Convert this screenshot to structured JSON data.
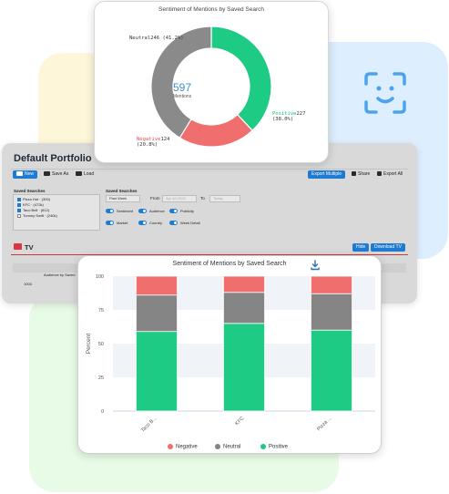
{
  "donut": {
    "title": "Sentiment of Mentions by Saved Search",
    "center_value": "597",
    "center_label": "Mentions",
    "slices": [
      {
        "name": "Neutral",
        "count": "246",
        "pct": "(41.2%)",
        "color": "#8a8a8a"
      },
      {
        "name": "Positive",
        "count": "227",
        "pct": "(38.0%)",
        "color": "#1ecb84"
      },
      {
        "name": "Negative",
        "count": "124",
        "pct": "(20.8%)",
        "color": "#f06e6e"
      }
    ],
    "values": [
      246,
      227,
      124
    ]
  },
  "portfolio": {
    "title": "Default Portfolio",
    "toolbar": {
      "new_label": "New",
      "save_as_label": "Save As",
      "load_label": "Load",
      "export_multiple_label": "Export Multiple",
      "share_label": "Share",
      "export_all_label": "Export All"
    },
    "saved_searches_label": "Saved Searches",
    "saved_searches": [
      {
        "label": "Pizza Hut · (300)",
        "checked": true
      },
      {
        "label": "KFC · (472k)",
        "checked": true
      },
      {
        "label": "Taco Bell · (812)",
        "checked": true
      },
      {
        "label": "Tummy Swift · (240k)",
        "checked": false
      }
    ],
    "saved_searches_right_label": "Saved Searches",
    "period_value": "Past Week",
    "from_label": "From",
    "from_value": "Apr 10 2022",
    "to_label": "To",
    "to_value": "Today",
    "toggles": [
      "Sentiment",
      "Audience",
      "Publicity",
      "Market",
      "Country",
      "Week Detail"
    ],
    "tv_title": "TV",
    "hide_label": "Hide",
    "download_tv_label": "Download TV",
    "table_header": "Audience by Saved",
    "table_row_value": "1003"
  },
  "bar_chart_title": "Sentiment of Mentions by Saved Search",
  "chart_data": {
    "type": "bar",
    "stacked": true,
    "title": "Sentiment of Mentions by Saved Search",
    "ylabel": "Percent",
    "xlabel": "",
    "categories": [
      "Taco B...",
      "KFC",
      "Pizza ..."
    ],
    "ylim": [
      0,
      100
    ],
    "yticks": [
      0,
      25,
      50,
      75,
      100
    ],
    "series": [
      {
        "name": "Positive",
        "color": "#1ecb84",
        "values": [
          59,
          65,
          60
        ]
      },
      {
        "name": "Neutral",
        "color": "#858585",
        "values": [
          27,
          23,
          27
        ]
      },
      {
        "name": "Negative",
        "color": "#f06e6e",
        "values": [
          14,
          12,
          13
        ]
      }
    ],
    "legend": [
      "Negative",
      "Neutral",
      "Positive"
    ],
    "legend_colors": [
      "#f06e6e",
      "#858585",
      "#1ecb84"
    ],
    "legend_position": "bottom"
  }
}
